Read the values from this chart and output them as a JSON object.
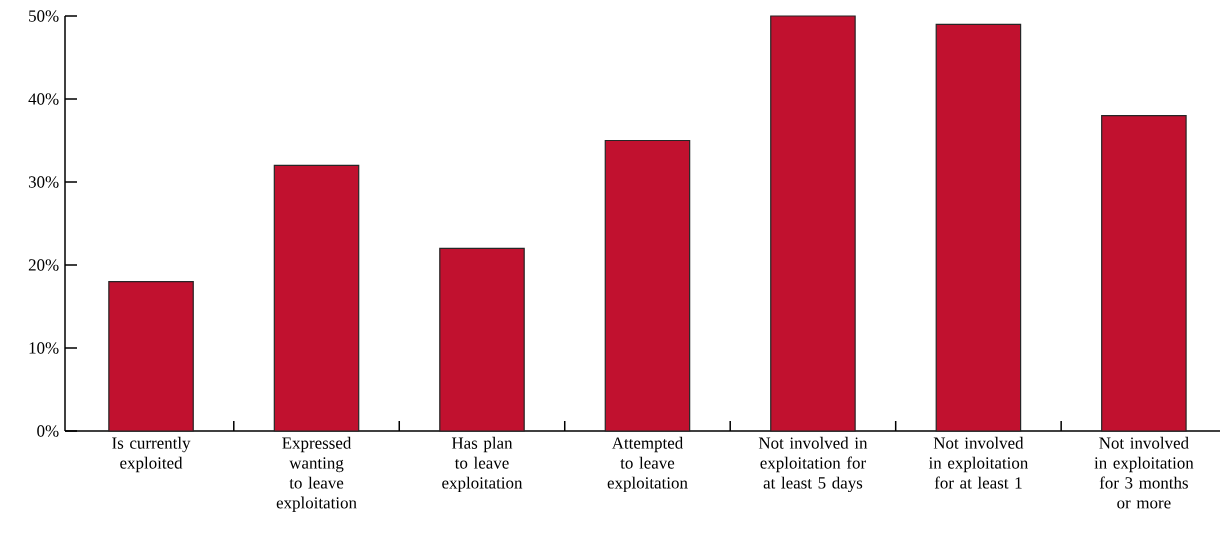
{
  "chart_data": {
    "type": "bar",
    "categories": [
      "Is currently exploited",
      "Expressed wanting to leave exploitation",
      "Has plan to leave exploitation",
      "Attempted to leave exploitation",
      "Not involved in exploitation for at least 5 days",
      "Not involved in exploitation for at least 1",
      "Not involved in exploitation for 3 months or more"
    ],
    "values": [
      18,
      32,
      22,
      35,
      50,
      49,
      38
    ],
    "color": "#c1112f",
    "ylim": [
      0,
      50
    ],
    "yticks": [
      {
        "value": 0,
        "label": "0%"
      },
      {
        "value": 10,
        "label": "10%"
      },
      {
        "value": 20,
        "label": "20%"
      },
      {
        "value": 30,
        "label": "30%"
      },
      {
        "value": 40,
        "label": "40%"
      },
      {
        "value": 50,
        "label": "50%"
      }
    ]
  }
}
